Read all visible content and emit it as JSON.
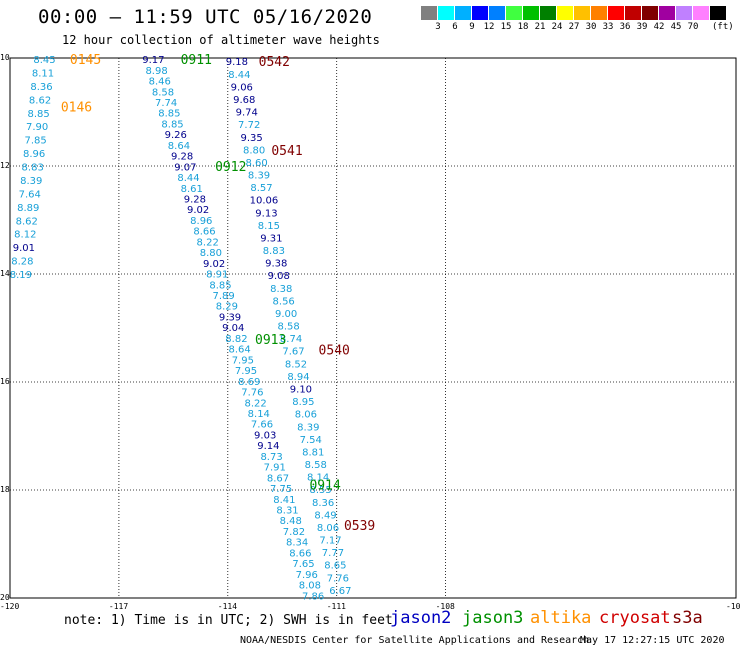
{
  "title": "00:00 – 11:59 UTC 05/16/2020",
  "subtitle": "12 hour collection of altimeter wave heights",
  "colorbar": {
    "unit": "(ft)",
    "boxes": [
      "#808080",
      "#00ffff",
      "#00b0ff",
      "#0000ff",
      "#0080ff",
      "#40ff40",
      "#00c000",
      "#008000",
      "#ffff00",
      "#ffc000",
      "#ff8000",
      "#ff0000",
      "#c00000",
      "#800000",
      "#a000a0",
      "#c080ff",
      "#ff80ff",
      "#000000"
    ],
    "labels": [
      "3",
      "6",
      "9",
      "12",
      "15",
      "18",
      "21",
      "24",
      "27",
      "30",
      "33",
      "36",
      "39",
      "42",
      "45",
      "70"
    ]
  },
  "axes": {
    "lat_ticks": [
      "10",
      "12",
      "14",
      "16",
      "18",
      "20"
    ],
    "lon_ticks": [
      "-120",
      "-117",
      "-114",
      "-111",
      "-108",
      "-10"
    ]
  },
  "note": "note:  1) Time is in UTC;  2) SWH is in feet",
  "legend": [
    {
      "name": "jason2",
      "color": "#0000c0"
    },
    {
      "name": "jason3",
      "color": "#009000"
    },
    {
      "name": "altika",
      "color": "#ff9000"
    },
    {
      "name": "cryosat",
      "color": "#d00000"
    },
    {
      "name": "s3a",
      "color": "#800000"
    }
  ],
  "footer": "NOAA/NESDIS Center for Satellite Applications and Research",
  "timestamp": "May 17 12:27:15 UTC 2020",
  "colors": {
    "light": "#18a0d8",
    "dark": "#00008c"
  },
  "time_labels": [
    {
      "text": "0145",
      "color": "#ff9000",
      "lon": -118.35,
      "lat": 10.02
    },
    {
      "text": "0146",
      "color": "#ff9000",
      "lon": -118.6,
      "lat": 10.9
    },
    {
      "text": "0911",
      "color": "#009000",
      "lon": -115.3,
      "lat": 10.02
    },
    {
      "text": "0912",
      "color": "#009000",
      "lon": -114.35,
      "lat": 12.0
    },
    {
      "text": "0913",
      "color": "#009000",
      "lon": -113.25,
      "lat": 15.2
    },
    {
      "text": "0914",
      "color": "#009000",
      "lon": -111.75,
      "lat": 17.9
    },
    {
      "text": "0542",
      "color": "#800000",
      "lon": -113.15,
      "lat": 10.06
    },
    {
      "text": "0541",
      "color": "#800000",
      "lon": -112.8,
      "lat": 11.7
    },
    {
      "text": "0540",
      "color": "#800000",
      "lon": -111.5,
      "lat": 15.4
    },
    {
      "text": "0539",
      "color": "#800000",
      "lon": -110.8,
      "lat": 18.65
    }
  ],
  "tracks": [
    {
      "name": "altika",
      "lon_start": -119.05,
      "lat_start": 10.02,
      "lon_end": -119.7,
      "lat_end": 14.0,
      "values": [
        [
          "8.45",
          "l"
        ],
        [
          "8.11",
          "l"
        ],
        [
          "8.36",
          "l"
        ],
        [
          "8.62",
          "l"
        ],
        [
          "8.85",
          "l"
        ],
        [
          "7.90",
          "l"
        ],
        [
          "7.85",
          "l"
        ],
        [
          "8.96",
          "l"
        ],
        [
          "8.83",
          "l"
        ],
        [
          "8.39",
          "l"
        ],
        [
          "7.64",
          "l"
        ],
        [
          "8.89",
          "l"
        ],
        [
          "8.62",
          "l"
        ],
        [
          "8.12",
          "l"
        ],
        [
          "9.01",
          "d"
        ],
        [
          "8.28",
          "l"
        ],
        [
          "8.19",
          "l"
        ]
      ]
    },
    {
      "name": "jason3",
      "lon_start": -116.05,
      "lat_start": 10.02,
      "lon_end": -111.65,
      "lat_end": 19.95,
      "values": [
        [
          "9.17",
          "d"
        ],
        [
          "8.98",
          "l"
        ],
        [
          "8.46",
          "l"
        ],
        [
          "8.58",
          "l"
        ],
        [
          "7.74",
          "l"
        ],
        [
          "8.85",
          "l"
        ],
        [
          "8.85",
          "l"
        ],
        [
          "9.26",
          "d"
        ],
        [
          "8.64",
          "l"
        ],
        [
          "9.28",
          "d"
        ],
        [
          "9.07",
          "d"
        ],
        [
          "8.44",
          "l"
        ],
        [
          "8.61",
          "l"
        ],
        [
          "9.28",
          "d"
        ],
        [
          "9.02",
          "d"
        ],
        [
          "8.96",
          "l"
        ],
        [
          "8.66",
          "l"
        ],
        [
          "8.22",
          "l"
        ],
        [
          "8.80",
          "l"
        ],
        [
          "9.02",
          "d"
        ],
        [
          "8.91",
          "l"
        ],
        [
          "8.85",
          "l"
        ],
        [
          "7.89",
          "l"
        ],
        [
          "8.29",
          "l"
        ],
        [
          "9.39",
          "d"
        ],
        [
          "9.04",
          "d"
        ],
        [
          "8.82",
          "l"
        ],
        [
          "8.64",
          "l"
        ],
        [
          "7.95",
          "l"
        ],
        [
          "7.95",
          "l"
        ],
        [
          "8.69",
          "l"
        ],
        [
          "7.76",
          "l"
        ],
        [
          "8.22",
          "l"
        ],
        [
          "8.14",
          "l"
        ],
        [
          "7.66",
          "l"
        ],
        [
          "9.03",
          "d"
        ],
        [
          "9.14",
          "d"
        ],
        [
          "8.73",
          "l"
        ],
        [
          "7.91",
          "l"
        ],
        [
          "8.67",
          "l"
        ],
        [
          "7.75",
          "l"
        ],
        [
          "8.41",
          "l"
        ],
        [
          "8.31",
          "l"
        ],
        [
          "8.48",
          "l"
        ],
        [
          "7.82",
          "l"
        ],
        [
          "8.34",
          "l"
        ],
        [
          "8.66",
          "l"
        ],
        [
          "7.65",
          "l"
        ],
        [
          "7.96",
          "l"
        ],
        [
          "8.08",
          "l"
        ],
        [
          "7.86",
          "l"
        ]
      ]
    },
    {
      "name": "s3a",
      "lon_start": -113.75,
      "lat_start": 10.06,
      "lon_end": -110.9,
      "lat_end": 19.85,
      "values": [
        [
          "9.18",
          "d"
        ],
        [
          "8.44",
          "l"
        ],
        [
          "9.06",
          "d"
        ],
        [
          "9.68",
          "d"
        ],
        [
          "9.74",
          "d"
        ],
        [
          "7.72",
          "l"
        ],
        [
          "9.35",
          "d"
        ],
        [
          "8.80",
          "l"
        ],
        [
          "8.60",
          "l"
        ],
        [
          "8.39",
          "l"
        ],
        [
          "8.57",
          "l"
        ],
        [
          "10.06",
          "d"
        ],
        [
          "9.13",
          "d"
        ],
        [
          "8.15",
          "l"
        ],
        [
          "9.31",
          "d"
        ],
        [
          "8.83",
          "l"
        ],
        [
          "9.38",
          "d"
        ],
        [
          "9.08",
          "d"
        ],
        [
          "8.38",
          "l"
        ],
        [
          "8.56",
          "l"
        ],
        [
          "9.00",
          "l"
        ],
        [
          "8.58",
          "l"
        ],
        [
          "8.74",
          "l"
        ],
        [
          "7.67",
          "l"
        ],
        [
          "8.52",
          "l"
        ],
        [
          "8.94",
          "l"
        ],
        [
          "9.10",
          "d"
        ],
        [
          "8.95",
          "l"
        ],
        [
          "8.06",
          "l"
        ],
        [
          "8.39",
          "l"
        ],
        [
          "7.54",
          "l"
        ],
        [
          "8.81",
          "l"
        ],
        [
          "8.58",
          "l"
        ],
        [
          "8.14",
          "l"
        ],
        [
          "8.55",
          "l"
        ],
        [
          "8.36",
          "l"
        ],
        [
          "8.49",
          "l"
        ],
        [
          "8.06",
          "l"
        ],
        [
          "7.17",
          "l"
        ],
        [
          "7.77",
          "l"
        ],
        [
          "8.65",
          "l"
        ],
        [
          "7.76",
          "l"
        ],
        [
          "6.67",
          "l"
        ]
      ]
    }
  ]
}
